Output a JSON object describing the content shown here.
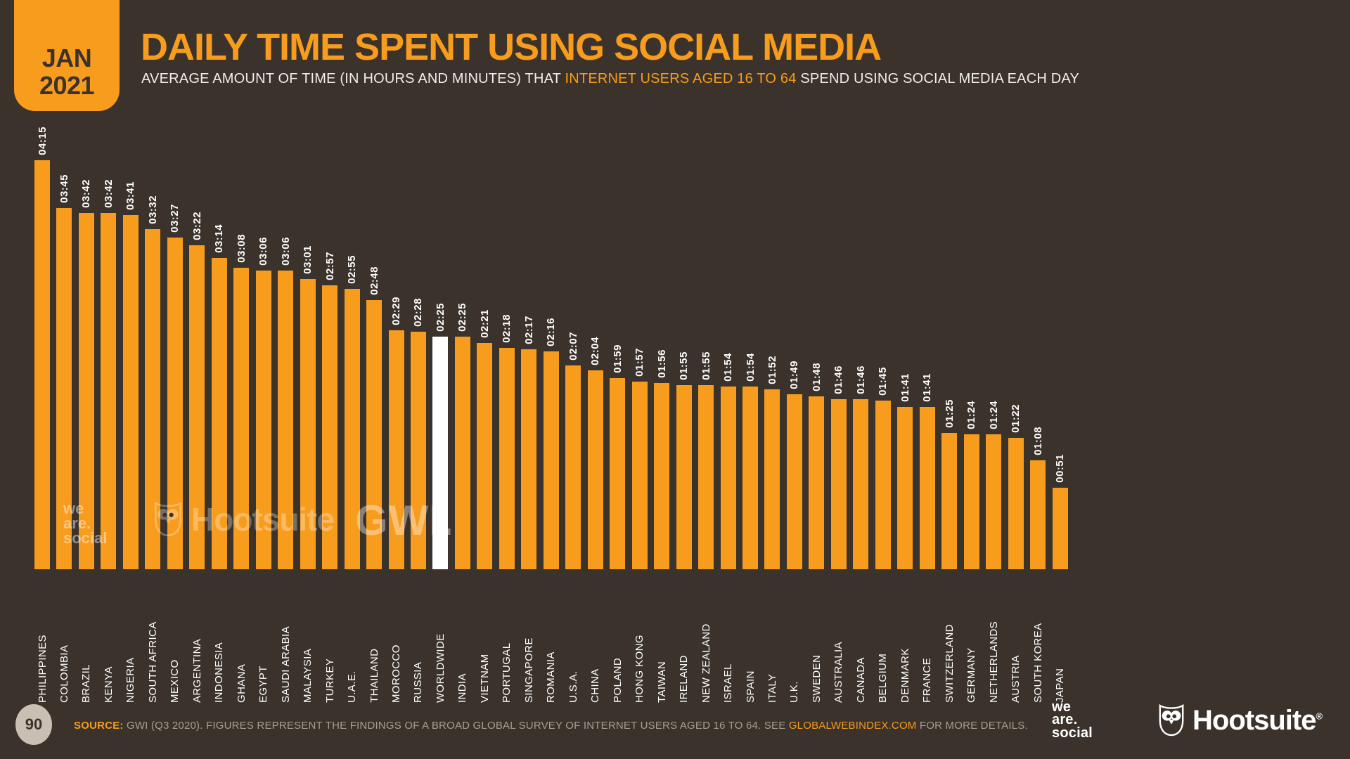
{
  "badge": {
    "month": "JAN",
    "year": "2021"
  },
  "header": {
    "title": "DAILY TIME SPENT USING SOCIAL MEDIA",
    "subtitle_prefix": "AVERAGE AMOUNT OF TIME (IN HOURS AND MINUTES) THAT ",
    "subtitle_highlight": "INTERNET USERS AGED 16 TO 64",
    "subtitle_suffix": " SPEND USING SOCIAL MEDIA EACH DAY"
  },
  "chart_data": {
    "type": "bar",
    "title": "DAILY TIME SPENT USING SOCIAL MEDIA",
    "unit": "hours:minutes per day",
    "grid": false,
    "legend": "none",
    "ylim_minutes": [
      0,
      255
    ],
    "bar_color": "#F89C1D",
    "highlight_color": "#FFFFFF",
    "highlight_category": "WORLDWIDE",
    "categories": [
      "PHILIPPINES",
      "COLOMBIA",
      "BRAZIL",
      "KENYA",
      "NIGERIA",
      "SOUTH AFRICA",
      "MEXICO",
      "ARGENTINA",
      "INDONESIA",
      "GHANA",
      "EGYPT",
      "SAUDI ARABIA",
      "MALAYSIA",
      "TURKEY",
      "U.A.E.",
      "THAILAND",
      "MOROCCO",
      "RUSSIA",
      "WORLDWIDE",
      "INDIA",
      "VIETNAM",
      "PORTUGAL",
      "SINGAPORE",
      "ROMANIA",
      "U.S.A.",
      "CHINA",
      "POLAND",
      "HONG KONG",
      "TAIWAN",
      "IRELAND",
      "NEW ZEALAND",
      "ISRAEL",
      "SPAIN",
      "ITALY",
      "U.K.",
      "SWEDEN",
      "AUSTRALIA",
      "CANADA",
      "BELGIUM",
      "DENMARK",
      "FRANCE",
      "SWITZERLAND",
      "GERMANY",
      "NETHERLANDS",
      "AUSTRIA",
      "SOUTH KOREA",
      "JAPAN"
    ],
    "values": [
      "04:15",
      "03:45",
      "03:42",
      "03:42",
      "03:41",
      "03:32",
      "03:27",
      "03:22",
      "03:14",
      "03:08",
      "03:06",
      "03:06",
      "03:01",
      "02:57",
      "02:55",
      "02:48",
      "02:29",
      "02:28",
      "02:25",
      "02:25",
      "02:21",
      "02:18",
      "02:17",
      "02:16",
      "02:07",
      "02:04",
      "01:59",
      "01:57",
      "01:56",
      "01:55",
      "01:55",
      "01:54",
      "01:54",
      "01:52",
      "01:49",
      "01:48",
      "01:46",
      "01:46",
      "01:45",
      "01:41",
      "01:41",
      "01:25",
      "01:24",
      "01:24",
      "01:22",
      "01:08",
      "00:51"
    ]
  },
  "watermarks": {
    "we_are_social_lines": [
      "we",
      "are.",
      "social"
    ],
    "hootsuite": "Hootsuite",
    "gwi": "GWI."
  },
  "footer": {
    "page_number": "90",
    "source_label": "SOURCE:",
    "source_text": " GWI (Q3 2020). FIGURES REPRESENT THE FINDINGS OF A BROAD GLOBAL SURVEY OF INTERNET USERS AGED 16 TO 64. SEE ",
    "source_link": "GLOBALWEBINDEX.COM",
    "source_suffix": " FOR MORE DETAILS.",
    "we_are_social_lines": [
      "we",
      "are.",
      "social"
    ],
    "hootsuite_label": "Hootsuite",
    "registered_mark": "®"
  },
  "colors": {
    "background": "#3A322B",
    "accent_orange": "#F89C1D",
    "highlight_white": "#FFFFFF"
  }
}
